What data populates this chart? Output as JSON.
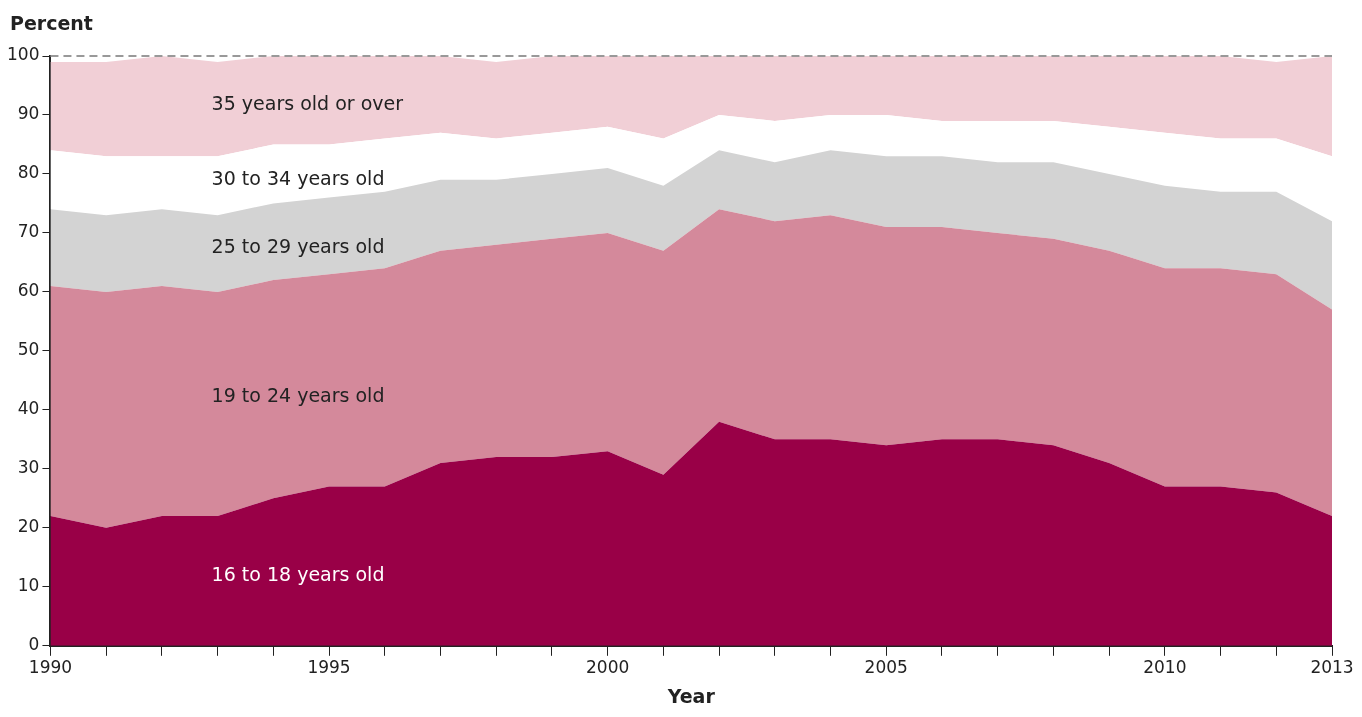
{
  "chart_data": {
    "type": "area",
    "stacked": true,
    "xlabel": "Year",
    "ylabel": "Percent",
    "x": [
      1990,
      1991,
      1992,
      1993,
      1994,
      1995,
      1996,
      1997,
      1998,
      1999,
      2000,
      2001,
      2002,
      2003,
      2004,
      2005,
      2006,
      2007,
      2008,
      2009,
      2010,
      2011,
      2012,
      2013
    ],
    "xlim": [
      1990,
      2013
    ],
    "xticks": [
      1990,
      {
        "value": 1991,
        "label": null
      },
      {
        "value": 1992,
        "label": null
      },
      {
        "value": 1993,
        "label": null
      },
      {
        "value": 1994,
        "label": null
      },
      1995,
      {
        "value": 1996,
        "label": null
      },
      {
        "value": 1997,
        "label": null
      },
      {
        "value": 1998,
        "label": null
      },
      {
        "value": 1999,
        "label": null
      },
      2000,
      {
        "value": 2001,
        "label": null
      },
      {
        "value": 2002,
        "label": null
      },
      {
        "value": 2003,
        "label": null
      },
      {
        "value": 2004,
        "label": null
      },
      2005,
      {
        "value": 2006,
        "label": null
      },
      {
        "value": 2007,
        "label": null
      },
      {
        "value": 2008,
        "label": null
      },
      {
        "value": 2009,
        "label": null
      },
      2010,
      {
        "value": 2011,
        "label": null
      },
      {
        "value": 2012,
        "label": null
      },
      2013
    ],
    "ylim": [
      0,
      100
    ],
    "yticks": [
      0,
      10,
      20,
      30,
      40,
      50,
      60,
      70,
      80,
      90,
      100
    ],
    "series": [
      {
        "name": "16 to 18 years old",
        "color": "#990047",
        "values": [
          22,
          20,
          22,
          22,
          25,
          27,
          27,
          31,
          32,
          32,
          33,
          29,
          38,
          35,
          35,
          34,
          35,
          35,
          34,
          31,
          27,
          27,
          26,
          22
        ]
      },
      {
        "name": "19 to 24 years old",
        "color": "#d4899b",
        "values": [
          39,
          40,
          39,
          38,
          37,
          36,
          37,
          36,
          36,
          37,
          37,
          38,
          36,
          37,
          38,
          37,
          36,
          35,
          35,
          36,
          37,
          37,
          37,
          35
        ]
      },
      {
        "name": "25 to 29 years old",
        "color": "#d3d3d3",
        "values": [
          13,
          13,
          13,
          13,
          13,
          13,
          13,
          12,
          11,
          11,
          11,
          11,
          10,
          10,
          11,
          12,
          12,
          12,
          13,
          13,
          14,
          13,
          14,
          15
        ]
      },
      {
        "name": "30 to 34 years old",
        "color": "#ffffff",
        "values": [
          10,
          10,
          9,
          10,
          10,
          9,
          9,
          8,
          7,
          7,
          7,
          8,
          6,
          7,
          6,
          7,
          6,
          7,
          7,
          8,
          9,
          9,
          9,
          11
        ]
      },
      {
        "name": "35 years old or over",
        "color": "#f1cfd6",
        "values": [
          15,
          16,
          17,
          16,
          15,
          15,
          14,
          13,
          13,
          13,
          12,
          14,
          10,
          11,
          10,
          10,
          11,
          11,
          11,
          12,
          13,
          14,
          13,
          17
        ]
      }
    ],
    "ref_lines": [
      {
        "axis": "y",
        "value": 100,
        "color": "#999999",
        "line_style": "dashed"
      }
    ]
  }
}
